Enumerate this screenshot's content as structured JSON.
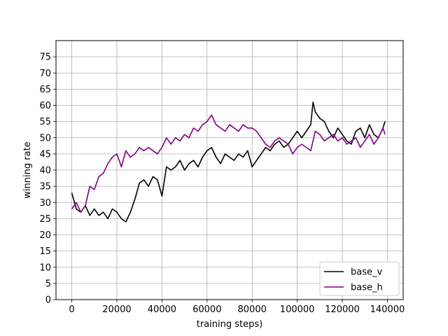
{
  "chart_data": {
    "type": "line",
    "title": "",
    "xlabel": "training steps)",
    "ylabel": "winning rate",
    "xlim": [
      -7000,
      147000
    ],
    "ylim": [
      0,
      80
    ],
    "xticks": [
      0,
      20000,
      40000,
      60000,
      80000,
      100000,
      120000,
      140000
    ],
    "yticks": [
      0,
      5,
      10,
      15,
      20,
      25,
      30,
      35,
      40,
      45,
      50,
      55,
      60,
      65,
      70,
      75
    ],
    "grid": true,
    "legend": {
      "placement": "bottom-right"
    },
    "series": [
      {
        "name": "base_v",
        "color": "#000000",
        "x": [
          0,
          2000,
          4000,
          6000,
          8000,
          10000,
          12000,
          14000,
          16000,
          18000,
          20000,
          22000,
          24000,
          26000,
          28000,
          30000,
          32000,
          34000,
          36000,
          38000,
          40000,
          42000,
          44000,
          46000,
          48000,
          50000,
          52000,
          54000,
          56000,
          58000,
          60000,
          62000,
          64000,
          66000,
          68000,
          70000,
          72000,
          74000,
          76000,
          78000,
          80000,
          82000,
          84000,
          86000,
          88000,
          90000,
          92000,
          94000,
          96000,
          98000,
          100000,
          102000,
          104000,
          106000,
          107000,
          108000,
          110000,
          112000,
          114000,
          116000,
          118000,
          120000,
          122000,
          124000,
          126000,
          128000,
          130000,
          132000,
          134000,
          136000,
          138000,
          139000
        ],
        "y": [
          33,
          28,
          27,
          29,
          26,
          28,
          26,
          27,
          25,
          28,
          27,
          25,
          24,
          27,
          31,
          36,
          37,
          35,
          38,
          37,
          32,
          41,
          40,
          41,
          43,
          40,
          42,
          43,
          41,
          44,
          46,
          47,
          44,
          42,
          45,
          44,
          43,
          45,
          44,
          46,
          41,
          43,
          45,
          47,
          46,
          48,
          49,
          47,
          48,
          50,
          52,
          50,
          52,
          54,
          61,
          58,
          56,
          55,
          52,
          50,
          53,
          51,
          49,
          48,
          52,
          53,
          50,
          54,
          51,
          50,
          53,
          55
        ]
      },
      {
        "name": "base_h",
        "color": "#800080",
        "x": [
          0,
          2000,
          4000,
          6000,
          8000,
          10000,
          12000,
          14000,
          16000,
          18000,
          20000,
          22000,
          24000,
          26000,
          28000,
          30000,
          32000,
          34000,
          36000,
          38000,
          40000,
          42000,
          44000,
          46000,
          48000,
          50000,
          52000,
          54000,
          56000,
          58000,
          60000,
          62000,
          64000,
          66000,
          68000,
          70000,
          72000,
          74000,
          76000,
          78000,
          80000,
          82000,
          84000,
          86000,
          88000,
          90000,
          92000,
          94000,
          96000,
          98000,
          100000,
          102000,
          104000,
          106000,
          108000,
          110000,
          112000,
          114000,
          116000,
          118000,
          120000,
          122000,
          124000,
          126000,
          128000,
          130000,
          132000,
          134000,
          136000,
          138000,
          139000
        ],
        "y": [
          28,
          30,
          27,
          29,
          35,
          34,
          38,
          39,
          42,
          44,
          45,
          41,
          46,
          44,
          45,
          47,
          46,
          47,
          46,
          45,
          47,
          50,
          48,
          50,
          49,
          51,
          50,
          53,
          52,
          54,
          55,
          57,
          54,
          53,
          52,
          54,
          53,
          52,
          54,
          53,
          53,
          52,
          50,
          48,
          47,
          49,
          50,
          49,
          48,
          45,
          47,
          48,
          47,
          46,
          52,
          51,
          49,
          50,
          51,
          49,
          50,
          48,
          49,
          50,
          47,
          49,
          51,
          48,
          50,
          53,
          51
        ]
      }
    ]
  }
}
